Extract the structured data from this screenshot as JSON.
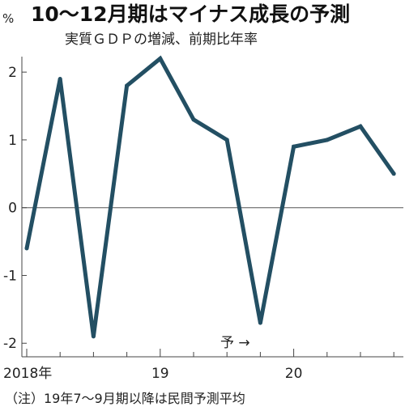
{
  "chart_data": {
    "type": "line",
    "title": "10～12月期はマイナス成長の予測",
    "subtitle": "実質ＧＤＰの増減、前期比年率",
    "unit": "%",
    "x": [
      "2018Q1",
      "2018Q2",
      "2018Q3",
      "2018Q4",
      "2019Q1",
      "2019Q2",
      "2019Q3",
      "2019Q4",
      "2020Q1",
      "2020Q2",
      "2020Q3",
      "2020Q4"
    ],
    "series": [
      {
        "values": [
          -0.6,
          1.9,
          -1.9,
          1.8,
          2.2,
          1.3,
          1.0,
          -1.7,
          0.9,
          1.0,
          1.2,
          0.5
        ]
      }
    ],
    "x_tick_labels": [
      "2018年",
      "19",
      "20"
    ],
    "y_ticks": [
      "2",
      "1",
      "0",
      "-1",
      "-2"
    ],
    "y_tick_values": [
      2,
      1,
      0,
      -1,
      -2
    ],
    "ylim": [
      -2.2,
      2.3
    ],
    "annotation": "予 →",
    "note": "（注）19年7～9月期以降は民間予測平均",
    "line_color": "#234f63",
    "grid": false
  }
}
